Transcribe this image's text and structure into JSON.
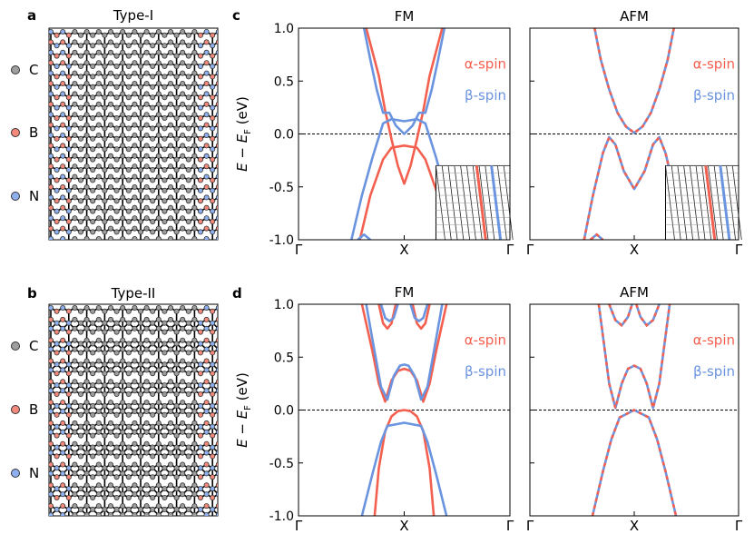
{
  "colors": {
    "alpha": "#f4604f",
    "beta": "#6b94e0",
    "C": "#9e9e9e",
    "B": "#f58a7c",
    "N": "#8fb0ee",
    "bond": "#000000"
  },
  "panels": {
    "a": {
      "letter": "a",
      "title": "Type-I"
    },
    "b": {
      "letter": "b",
      "title": "Type-II"
    },
    "c": {
      "letter": "c"
    },
    "d": {
      "letter": "d"
    }
  },
  "legend_atoms": [
    "C",
    "B",
    "N"
  ],
  "chart_data": [
    {
      "id": "c-FM",
      "type": "line",
      "title": "FM",
      "ylabel": "E − E_F (eV)",
      "ylim": [
        -1.0,
        1.0
      ],
      "yticks": [
        "1.0",
        "0.5",
        "0.0",
        "-0.5",
        "-1.0"
      ],
      "xticks": [
        "Γ",
        "X",
        "Γ"
      ],
      "fermi_level": 0.0,
      "grid": false,
      "legend": [
        "α-spin",
        "β-spin"
      ],
      "legend_position": "right",
      "inset": true,
      "series": [
        {
          "name": "α-spin",
          "points": [
            [
              0.29,
              -1.0
            ],
            [
              0.34,
              -0.58
            ],
            [
              0.4,
              -0.24
            ],
            [
              0.44,
              -0.13
            ],
            [
              0.5,
              -0.11
            ],
            [
              0.56,
              -0.13
            ],
            [
              0.6,
              -0.24
            ],
            [
              0.66,
              -0.58
            ],
            [
              0.71,
              -1.0
            ]
          ]
        },
        {
          "name": "α-spin",
          "points": [
            [
              0.32,
              1.0
            ],
            [
              0.38,
              0.55
            ],
            [
              0.41,
              0.22
            ],
            [
              0.44,
              -0.05
            ],
            [
              0.47,
              -0.3
            ],
            [
              0.5,
              -0.47
            ],
            [
              0.53,
              -0.3
            ],
            [
              0.56,
              -0.05
            ],
            [
              0.59,
              0.22
            ],
            [
              0.62,
              0.55
            ],
            [
              0.68,
              1.0
            ]
          ]
        },
        {
          "name": "β-spin",
          "points": [
            [
              0.31,
              1.0
            ],
            [
              0.34,
              0.7
            ],
            [
              0.37,
              0.42
            ],
            [
              0.4,
              0.2
            ],
            [
              0.43,
              0.2
            ],
            [
              0.46,
              0.08
            ],
            [
              0.5,
              0.0
            ],
            [
              0.54,
              0.08
            ],
            [
              0.57,
              0.2
            ],
            [
              0.6,
              0.2
            ],
            [
              0.63,
              0.42
            ],
            [
              0.66,
              0.7
            ],
            [
              0.69,
              1.0
            ]
          ]
        },
        {
          "name": "β-spin",
          "points": [
            [
              0.25,
              -1.0
            ],
            [
              0.3,
              -0.58
            ],
            [
              0.35,
              -0.22
            ],
            [
              0.4,
              0.1
            ],
            [
              0.44,
              0.14
            ],
            [
              0.5,
              0.12
            ],
            [
              0.56,
              0.14
            ],
            [
              0.6,
              0.1
            ],
            [
              0.65,
              -0.22
            ],
            [
              0.7,
              -0.58
            ],
            [
              0.75,
              -1.0
            ]
          ]
        },
        {
          "name": "β-spin",
          "points": [
            [
              0.28,
              -1.0
            ],
            [
              0.31,
              -0.95
            ],
            [
              0.34,
              -1.0
            ]
          ]
        },
        {
          "name": "β-spin",
          "points": [
            [
              0.66,
              -1.0
            ],
            [
              0.69,
              -0.95
            ],
            [
              0.72,
              -1.0
            ]
          ]
        }
      ]
    },
    {
      "id": "c-AFM",
      "type": "line",
      "title": "AFM",
      "ylim": [
        -1.0,
        1.0
      ],
      "xticks": [
        "Γ",
        "X",
        "Γ"
      ],
      "fermi_level": 0.0,
      "grid": false,
      "legend": [
        "α-spin",
        "β-spin"
      ],
      "legend_position": "right",
      "inset": true,
      "series": [
        {
          "name": "α-spin/β-spin (degenerate)",
          "points": [
            [
              0.31,
              1.0
            ],
            [
              0.34,
              0.7
            ],
            [
              0.38,
              0.42
            ],
            [
              0.42,
              0.2
            ],
            [
              0.46,
              0.07
            ],
            [
              0.5,
              0.01
            ],
            [
              0.54,
              0.07
            ],
            [
              0.58,
              0.2
            ],
            [
              0.62,
              0.42
            ],
            [
              0.66,
              0.7
            ],
            [
              0.69,
              1.0
            ]
          ]
        },
        {
          "name": "α-spin/β-spin (degenerate)",
          "points": [
            [
              0.26,
              -1.0
            ],
            [
              0.3,
              -0.6
            ],
            [
              0.35,
              -0.18
            ],
            [
              0.38,
              -0.03
            ],
            [
              0.41,
              -0.1
            ],
            [
              0.45,
              -0.35
            ],
            [
              0.5,
              -0.52
            ],
            [
              0.55,
              -0.35
            ],
            [
              0.59,
              -0.1
            ],
            [
              0.62,
              -0.03
            ],
            [
              0.65,
              -0.18
            ],
            [
              0.7,
              -0.6
            ],
            [
              0.74,
              -1.0
            ]
          ]
        },
        {
          "name": "α-spin/β-spin (degenerate)",
          "points": [
            [
              0.29,
              -1.0
            ],
            [
              0.32,
              -0.95
            ],
            [
              0.35,
              -1.0
            ]
          ]
        },
        {
          "name": "α-spin/β-spin (degenerate)",
          "points": [
            [
              0.65,
              -1.0
            ],
            [
              0.68,
              -0.95
            ],
            [
              0.71,
              -1.0
            ]
          ]
        }
      ]
    },
    {
      "id": "d-FM",
      "type": "line",
      "title": "FM",
      "ylabel": "E − E_F (eV)",
      "ylim": [
        -1.0,
        1.0
      ],
      "yticks": [
        "1.0",
        "0.5",
        "0.0",
        "-0.5",
        "-1.0"
      ],
      "xticks": [
        "Γ",
        "X",
        "Γ"
      ],
      "fermi_level": 0.0,
      "grid": false,
      "legend": [
        "α-spin",
        "β-spin"
      ],
      "legend_position": "right",
      "series": [
        {
          "name": "α-spin",
          "points": [
            [
              0.3,
              1.0
            ],
            [
              0.35,
              0.55
            ],
            [
              0.38,
              0.25
            ],
            [
              0.41,
              0.08
            ],
            [
              0.44,
              0.28
            ],
            [
              0.47,
              0.37
            ],
            [
              0.5,
              0.39
            ],
            [
              0.53,
              0.37
            ],
            [
              0.56,
              0.28
            ],
            [
              0.59,
              0.08
            ],
            [
              0.62,
              0.25
            ],
            [
              0.65,
              0.55
            ],
            [
              0.7,
              1.0
            ]
          ]
        },
        {
          "name": "α-spin",
          "points": [
            [
              0.36,
              -1.0
            ],
            [
              0.38,
              -0.55
            ],
            [
              0.41,
              -0.2
            ],
            [
              0.44,
              -0.06
            ],
            [
              0.47,
              -0.01
            ],
            [
              0.5,
              0.0
            ],
            [
              0.53,
              -0.01
            ],
            [
              0.56,
              -0.06
            ],
            [
              0.59,
              -0.2
            ],
            [
              0.62,
              -0.55
            ],
            [
              0.64,
              -1.0
            ]
          ]
        },
        {
          "name": "α-spin",
          "points": [
            [
              0.38,
              1.0
            ],
            [
              0.4,
              0.82
            ],
            [
              0.42,
              0.77
            ],
            [
              0.44,
              0.82
            ],
            [
              0.46,
              1.0
            ]
          ]
        },
        {
          "name": "α-spin",
          "points": [
            [
              0.54,
              1.0
            ],
            [
              0.56,
              0.82
            ],
            [
              0.58,
              0.77
            ],
            [
              0.6,
              0.82
            ],
            [
              0.62,
              1.0
            ]
          ]
        },
        {
          "name": "β-spin",
          "points": [
            [
              0.32,
              1.0
            ],
            [
              0.36,
              0.55
            ],
            [
              0.39,
              0.22
            ],
            [
              0.42,
              0.1
            ],
            [
              0.45,
              0.32
            ],
            [
              0.48,
              0.42
            ],
            [
              0.5,
              0.43
            ],
            [
              0.52,
              0.42
            ],
            [
              0.55,
              0.32
            ],
            [
              0.58,
              0.1
            ],
            [
              0.61,
              0.22
            ],
            [
              0.64,
              0.55
            ],
            [
              0.68,
              1.0
            ]
          ]
        },
        {
          "name": "β-spin",
          "points": [
            [
              0.3,
              -1.0
            ],
            [
              0.35,
              -0.6
            ],
            [
              0.39,
              -0.3
            ],
            [
              0.42,
              -0.15
            ],
            [
              0.5,
              -0.12
            ],
            [
              0.58,
              -0.15
            ],
            [
              0.61,
              -0.3
            ],
            [
              0.65,
              -0.6
            ],
            [
              0.7,
              -1.0
            ]
          ]
        },
        {
          "name": "β-spin",
          "points": [
            [
              0.39,
              1.0
            ],
            [
              0.41,
              0.87
            ],
            [
              0.43,
              0.84
            ],
            [
              0.45,
              0.87
            ],
            [
              0.47,
              1.0
            ]
          ]
        },
        {
          "name": "β-spin",
          "points": [
            [
              0.53,
              1.0
            ],
            [
              0.55,
              0.87
            ],
            [
              0.57,
              0.84
            ],
            [
              0.59,
              0.87
            ],
            [
              0.61,
              1.0
            ]
          ]
        }
      ]
    },
    {
      "id": "d-AFM",
      "type": "line",
      "title": "AFM",
      "ylim": [
        -1.0,
        1.0
      ],
      "xticks": [
        "Γ",
        "X",
        "Γ"
      ],
      "fermi_level": 0.0,
      "grid": false,
      "legend": [
        "α-spin",
        "β-spin"
      ],
      "legend_position": "right",
      "series": [
        {
          "name": "α-spin/β-spin (degenerate)",
          "points": [
            [
              0.33,
              1.0
            ],
            [
              0.36,
              0.55
            ],
            [
              0.38,
              0.25
            ],
            [
              0.41,
              0.02
            ],
            [
              0.44,
              0.25
            ],
            [
              0.47,
              0.39
            ],
            [
              0.5,
              0.42
            ],
            [
              0.53,
              0.39
            ],
            [
              0.56,
              0.25
            ],
            [
              0.59,
              0.02
            ],
            [
              0.62,
              0.25
            ],
            [
              0.64,
              0.55
            ],
            [
              0.67,
              1.0
            ]
          ]
        },
        {
          "name": "α-spin/β-spin (degenerate)",
          "points": [
            [
              0.3,
              -1.0
            ],
            [
              0.35,
              -0.58
            ],
            [
              0.39,
              -0.28
            ],
            [
              0.43,
              -0.07
            ],
            [
              0.5,
              0.0
            ],
            [
              0.57,
              -0.07
            ],
            [
              0.61,
              -0.28
            ],
            [
              0.65,
              -0.58
            ],
            [
              0.7,
              -1.0
            ]
          ]
        },
        {
          "name": "α-spin/β-spin (degenerate)",
          "points": [
            [
              0.38,
              1.0
            ],
            [
              0.41,
              0.85
            ],
            [
              0.44,
              0.8
            ],
            [
              0.47,
              0.88
            ],
            [
              0.49,
              1.0
            ]
          ]
        },
        {
          "name": "α-spin/β-spin (degenerate)",
          "points": [
            [
              0.51,
              1.0
            ],
            [
              0.53,
              0.88
            ],
            [
              0.56,
              0.8
            ],
            [
              0.59,
              0.85
            ],
            [
              0.62,
              1.0
            ]
          ]
        }
      ]
    }
  ]
}
